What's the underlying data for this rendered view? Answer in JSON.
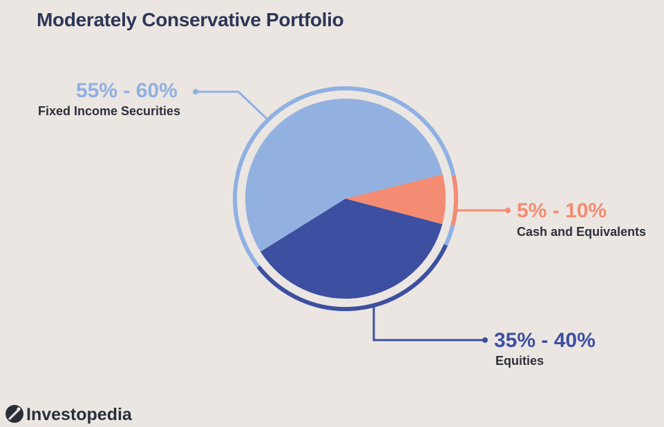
{
  "chart_data": {
    "type": "pie",
    "title": "Moderately Conservative Portfolio",
    "unit": "%",
    "slices": [
      {
        "key": "fixed",
        "label": "Fixed Income Securities",
        "range_text": "55% - 60%",
        "range": [
          55,
          60
        ],
        "value": 55,
        "color": "#93b1e0",
        "ring_color": "#8fb0e3"
      },
      {
        "key": "cash",
        "label": "Cash and Equivalents",
        "range_text": "5% - 10%",
        "range": [
          5,
          10
        ],
        "value": 8,
        "color": "#f38c73",
        "ring_color": "#f38c73"
      },
      {
        "key": "equities",
        "label": "Equities",
        "range_text": "35% - 40%",
        "range": [
          35,
          40
        ],
        "value": 37,
        "color": "#3d4fa1",
        "ring_color": "#3d4fa1"
      }
    ]
  },
  "colors": {
    "background": "#ebe6e1",
    "title": "#2c3658",
    "category_text": "#2d2f3a",
    "ring_base": "#8fb0e3",
    "ring_gap": "#ebe6e1"
  },
  "brand": {
    "logo_text": "Investopedia",
    "icon": "investopedia-logo-icon",
    "color": "#2b2e3a"
  }
}
